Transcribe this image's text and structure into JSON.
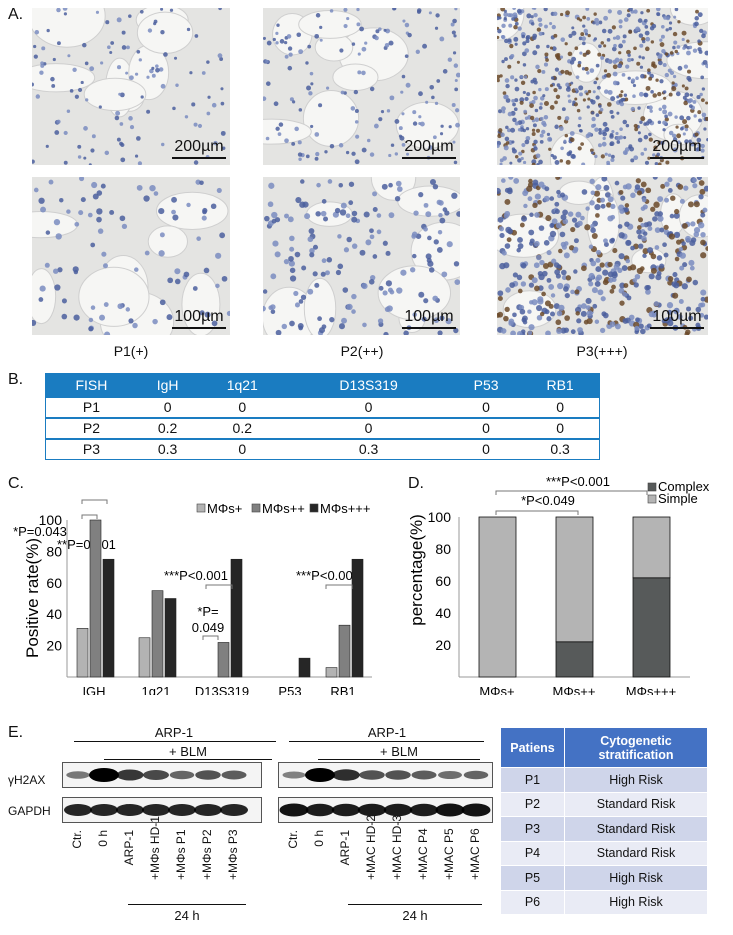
{
  "panel_labels": {
    "a": "A.",
    "b": "B.",
    "c": "C.",
    "d": "D.",
    "e": "E."
  },
  "panel_a": {
    "columns": [
      "P1(+)",
      "P2(++)",
      "P3(+++)"
    ],
    "scale_bars": {
      "top_row": "200µm",
      "bottom_row": "100µm"
    }
  },
  "panel_b": {
    "headers": [
      "FISH",
      "IgH",
      "1q21",
      "D13S319",
      "P53",
      "RB1"
    ],
    "rows": [
      [
        "P1",
        "0",
        "0",
        "0",
        "0",
        "0"
      ],
      [
        "P2",
        "0.2",
        "0.2",
        "0",
        "0",
        "0"
      ],
      [
        "P3",
        "0.3",
        "0",
        "0.3",
        "0",
        "0.3"
      ]
    ],
    "header_color": "#1a7cc1"
  },
  "chart_data": [
    {
      "type": "bar",
      "categories": [
        "IGH",
        "1q21",
        "D13S319",
        "P53",
        "RB1"
      ],
      "series": [
        {
          "name": "MΦs+",
          "values": [
            31,
            25,
            0,
            0,
            6
          ],
          "color": "#b3b3b3"
        },
        {
          "name": "MΦs++",
          "values": [
            100,
            55,
            22,
            0,
            33
          ],
          "color": "#808080"
        },
        {
          "name": "MΦs+++",
          "values": [
            75,
            50,
            75,
            12,
            75
          ],
          "color": "#262626"
        }
      ],
      "ylabel": "Positive rate(%)",
      "ylim": [
        0,
        100
      ],
      "yticks": [
        20,
        40,
        60,
        80,
        100
      ],
      "legend": "top-right",
      "annotations": [
        "*P=0.043",
        "**P=0.001",
        "*P=",
        "0.049",
        "***P<0.001",
        "***P<0.001"
      ]
    },
    {
      "type": "bar",
      "stacked": true,
      "categories": [
        "MΦs+",
        "MΦs++",
        "MΦs+++"
      ],
      "series": [
        {
          "name": "Complex",
          "values": [
            0,
            22,
            62
          ],
          "color": "#575a5a"
        },
        {
          "name": "Simple",
          "values": [
            100,
            78,
            38
          ],
          "color": "#b4b4b4"
        }
      ],
      "ylabel": "percentage(%)",
      "ylim": [
        0,
        100
      ],
      "yticks": [
        20,
        40,
        60,
        80,
        100
      ],
      "legend": "top-right",
      "annotations": [
        "***P<0.001",
        "*P<0.049"
      ]
    }
  ],
  "panel_e": {
    "left": {
      "group": "ARP-1",
      "treatment": "+ BLM",
      "time": "24 h",
      "rows": [
        "γH2AX",
        "GAPDH"
      ],
      "lanes": [
        "Ctr.",
        "0 h",
        "ARP-1",
        "+MΦs HD-1",
        "+MΦs P1",
        "+MΦs P2",
        "+MΦs P3"
      ],
      "band_intensity": {
        "γH2AX": [
          0.35,
          1.0,
          0.7,
          0.6,
          0.45,
          0.55,
          0.5
        ],
        "GAPDH": [
          0.8,
          0.8,
          0.8,
          0.8,
          0.8,
          0.8,
          0.8
        ]
      }
    },
    "right": {
      "group": "ARP-1",
      "treatment": "+ BLM",
      "time": "24 h",
      "lanes": [
        "Ctr.",
        "0 h",
        "ARP-1",
        "+MAC HD-2",
        "+MAC HD-3",
        "+MAC P4",
        "+MAC P5",
        "+MAC P6"
      ],
      "band_intensity": {
        "γH2AX": [
          0.3,
          1.0,
          0.75,
          0.55,
          0.55,
          0.5,
          0.4,
          0.45
        ],
        "GAPDH": [
          0.9,
          0.85,
          0.85,
          0.85,
          0.85,
          0.85,
          0.9,
          0.9
        ]
      }
    },
    "table": {
      "headers": [
        "Patiens",
        "Cytogenetic stratification"
      ],
      "rows": [
        [
          "P1",
          "High Risk"
        ],
        [
          "P2",
          "Standard Risk"
        ],
        [
          "P3",
          "Standard Risk"
        ],
        [
          "P4",
          "Standard Risk"
        ],
        [
          "P5",
          "High Risk"
        ],
        [
          "P6",
          "High Risk"
        ]
      ]
    }
  }
}
